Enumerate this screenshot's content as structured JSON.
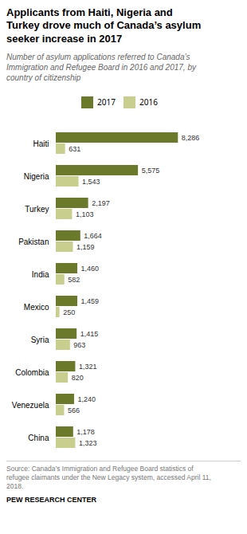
{
  "chart_data": {
    "type": "bar",
    "orientation": "horizontal",
    "title": "Applicants from Haiti, Nigeria and\nTurkey drove much of Canada’s asylum\nseeker increase in 2017",
    "subtitle": "Number of asylum applications referred to Canada’s\nImmigration and Refugee Board in 2016 and 2017, by\ncountry of citizenship",
    "source": "Source: Canada’s Immigration and Refugee Board statistics of\nrefugee claimants under the New Legacy system, accessed April 11,\n2018.",
    "footer": "PEW RESEARCH CENTER",
    "categories": [
      "Haiti",
      "Nigeria",
      "Turkey",
      "Pakistan",
      "India",
      "Mexico",
      "Syria",
      "Colombia",
      "Venezuela",
      "China"
    ],
    "series": [
      {
        "name": "2017",
        "color": "#6b7a2a",
        "values": [
          8286,
          5575,
          2197,
          1664,
          1460,
          1459,
          1415,
          1321,
          1240,
          1178
        ],
        "value_labels": [
          "8,286",
          "5,575",
          "2,197",
          "1,664",
          "1,460",
          "1,459",
          "1,415",
          "1,321",
          "1,240",
          "1,178"
        ]
      },
      {
        "name": "2016",
        "color": "#c8cf8e",
        "values": [
          631,
          1543,
          1103,
          1159,
          582,
          250,
          963,
          820,
          566,
          1323
        ],
        "value_labels": [
          "631",
          "1,543",
          "1,103",
          "1,159",
          "582",
          "250",
          "963",
          "820",
          "566",
          "1,323"
        ]
      }
    ],
    "xlim": [
      0,
      12000
    ],
    "data_labels": true,
    "tick_labels": "y",
    "legend": "top",
    "grid": false
  }
}
